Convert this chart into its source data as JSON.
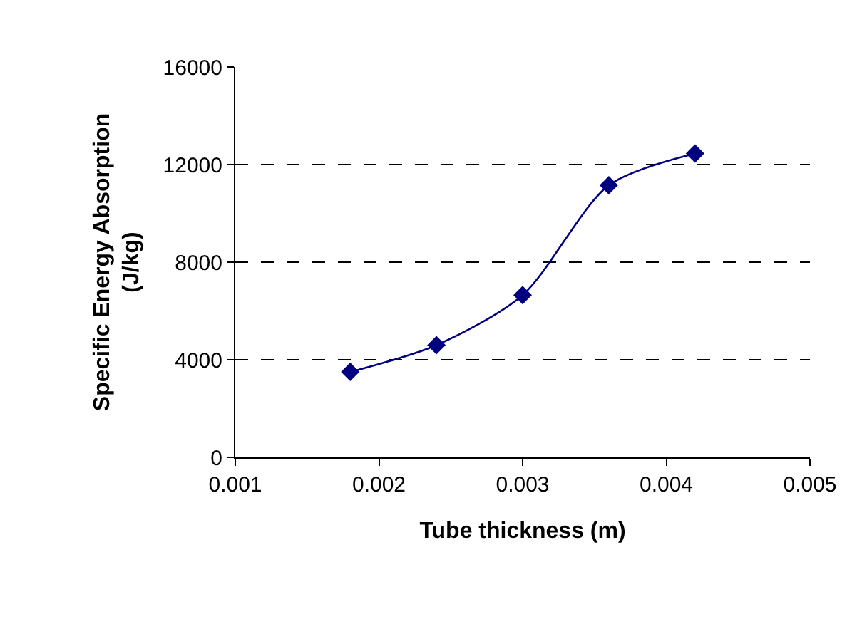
{
  "chart_data": {
    "type": "line",
    "xlabel": "Tube thickness (m)",
    "ylabel": "Specific Energy Absorption\n(J/kg)",
    "x": [
      0.0018,
      0.0024,
      0.003,
      0.0036,
      0.0042
    ],
    "series": [
      {
        "color": "#000080",
        "values": [
          3500,
          4600,
          6650,
          11150,
          12450
        ]
      }
    ],
    "xlim": [
      0.001,
      0.005
    ],
    "xticks": [
      0.001,
      0.002,
      0.003,
      0.004,
      0.005
    ],
    "ylim": [
      0,
      16000
    ],
    "yticks": [
      0,
      4000,
      8000,
      12000,
      16000
    ],
    "grid": "y",
    "marker": "diamond",
    "line_style": "solid"
  }
}
